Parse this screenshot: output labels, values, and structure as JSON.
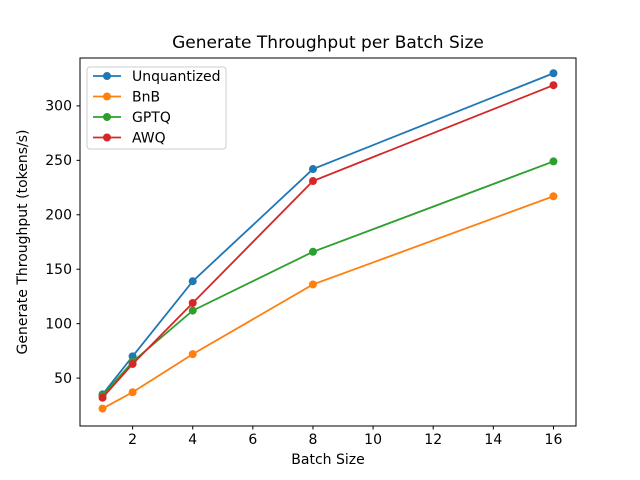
{
  "figure": {
    "background": "#ffffff"
  },
  "chart_data": {
    "type": "line",
    "title": "Generate Throughput per Batch Size",
    "xlabel": "Batch Size",
    "ylabel": "Generate Throughput (tokens/s)",
    "x": [
      1,
      2,
      4,
      8,
      16
    ],
    "series": [
      {
        "name": "Unquantized",
        "color": "#1f77b4",
        "values": [
          35,
          70,
          139,
          242,
          330
        ]
      },
      {
        "name": "BnB",
        "color": "#ff7f0e",
        "values": [
          22,
          37,
          72,
          136,
          217
        ]
      },
      {
        "name": "GPTQ",
        "color": "#2ca02c",
        "values": [
          34,
          65,
          112,
          166,
          249
        ]
      },
      {
        "name": "AWQ",
        "color": "#d62728",
        "values": [
          32,
          63,
          119,
          231,
          319
        ]
      }
    ],
    "xticks": [
      2,
      4,
      6,
      8,
      10,
      12,
      14,
      16
    ],
    "yticks": [
      50,
      100,
      150,
      200,
      250,
      300
    ],
    "xlim": [
      0.25,
      16.75
    ],
    "ylim": [
      6,
      344
    ],
    "grid": false,
    "marker": "o",
    "legend_position": "upper left",
    "legend_border_color": "#cccccc",
    "axis_color": "#000000"
  }
}
